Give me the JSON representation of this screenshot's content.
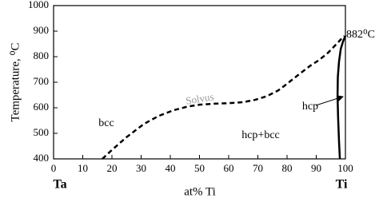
{
  "chart_data": {
    "type": "line",
    "xlabel": "at% Ti",
    "ylabel": "Temperature, ⁰C",
    "xlim": [
      0,
      100
    ],
    "ylim": [
      400,
      1000
    ],
    "xticks": [
      0,
      10,
      20,
      30,
      40,
      50,
      60,
      70,
      80,
      90,
      100
    ],
    "yticks": [
      400,
      500,
      600,
      700,
      800,
      900,
      1000
    ],
    "series": [
      {
        "name": "Solvus",
        "color": "#000000",
        "dashed": true,
        "x": [
          16.7,
          20,
          25,
          31,
          36,
          41,
          46,
          50,
          55,
          60,
          65,
          69,
          73,
          77,
          80,
          84,
          88,
          91,
          94,
          97,
          99.5
        ],
        "values": [
          400,
          435,
          485,
          537,
          568,
          590,
          605,
          612,
          616,
          618,
          622,
          631,
          645,
          668,
          694,
          730,
          765,
          787,
          815,
          850,
          881
        ]
      },
      {
        "color": "#000000",
        "dashed": false,
        "x": [
          98.1,
          97.8,
          97.5,
          97.3,
          97.4,
          97.8,
          98.4,
          99.2,
          100
        ],
        "values": [
          400,
          470,
          560,
          644,
          720,
          780,
          830,
          860,
          882
        ]
      }
    ],
    "annotations": [
      "882⁰C",
      "bcc",
      "hcp",
      "hcp+bcc",
      "Ta",
      "Ti"
    ]
  }
}
